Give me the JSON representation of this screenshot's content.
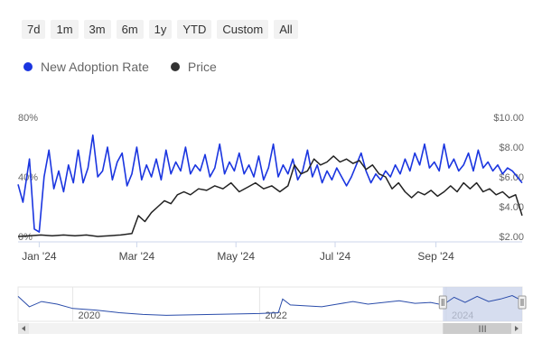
{
  "range_buttons": [
    "7d",
    "1m",
    "3m",
    "6m",
    "1y",
    "YTD",
    "Custom",
    "All"
  ],
  "legend": [
    {
      "label": "New Adoption Rate",
      "color": "#1a35e0"
    },
    {
      "label": "Price",
      "color": "#333333"
    }
  ],
  "colors": {
    "adoption": "#1a35e0",
    "price": "#222222",
    "navigator_line": "#2a4caa",
    "navigator_mask": "#c8d2ea"
  },
  "chart_data": {
    "type": "line",
    "x_type": "date",
    "x_range": [
      "2023-12-19",
      "2024-10-24"
    ],
    "x_tick_labels": [
      "Jan '24",
      "Mar '24",
      "May '24",
      "Jul '24",
      "Sep '24"
    ],
    "x_ticks": [
      "2024-01-01",
      "2024-03-01",
      "2024-05-01",
      "2024-07-01",
      "2024-09-01"
    ],
    "y_left": {
      "range": [
        0,
        80
      ],
      "tick_labels": [
        "0%",
        "40%",
        "80%"
      ],
      "tick_values": [
        0,
        40,
        80
      ]
    },
    "y_right": {
      "range": [
        2,
        10
      ],
      "tick_labels": [
        "$2.00",
        "$4.00",
        "$6.00",
        "$8.00",
        "$10.00"
      ],
      "tick_values": [
        2,
        4,
        6,
        8,
        10
      ]
    },
    "grid": false,
    "legend_position": "top-left",
    "series": [
      {
        "name": "New Adoption Rate",
        "axis": "left",
        "values": [
          {
            "x": "2023-12-19",
            "y": 35
          },
          {
            "x": "2023-12-22",
            "y": 23
          },
          {
            "x": "2023-12-26",
            "y": 52
          },
          {
            "x": "2023-12-29",
            "y": 5
          },
          {
            "x": "2024-01-01",
            "y": 3
          },
          {
            "x": "2024-01-04",
            "y": 40
          },
          {
            "x": "2024-01-07",
            "y": 58
          },
          {
            "x": "2024-01-10",
            "y": 32
          },
          {
            "x": "2024-01-13",
            "y": 44
          },
          {
            "x": "2024-01-16",
            "y": 30
          },
          {
            "x": "2024-01-19",
            "y": 48
          },
          {
            "x": "2024-01-22",
            "y": 36
          },
          {
            "x": "2024-01-25",
            "y": 58
          },
          {
            "x": "2024-01-28",
            "y": 36
          },
          {
            "x": "2024-01-31",
            "y": 46
          },
          {
            "x": "2024-02-03",
            "y": 68
          },
          {
            "x": "2024-02-06",
            "y": 40
          },
          {
            "x": "2024-02-09",
            "y": 44
          },
          {
            "x": "2024-02-12",
            "y": 60
          },
          {
            "x": "2024-02-15",
            "y": 38
          },
          {
            "x": "2024-02-18",
            "y": 50
          },
          {
            "x": "2024-02-21",
            "y": 56
          },
          {
            "x": "2024-02-24",
            "y": 34
          },
          {
            "x": "2024-02-27",
            "y": 42
          },
          {
            "x": "2024-03-01",
            "y": 60
          },
          {
            "x": "2024-03-04",
            "y": 38
          },
          {
            "x": "2024-03-07",
            "y": 48
          },
          {
            "x": "2024-03-10",
            "y": 40
          },
          {
            "x": "2024-03-13",
            "y": 52
          },
          {
            "x": "2024-03-16",
            "y": 38
          },
          {
            "x": "2024-03-19",
            "y": 58
          },
          {
            "x": "2024-03-22",
            "y": 42
          },
          {
            "x": "2024-03-25",
            "y": 50
          },
          {
            "x": "2024-03-28",
            "y": 44
          },
          {
            "x": "2024-03-31",
            "y": 60
          },
          {
            "x": "2024-04-03",
            "y": 42
          },
          {
            "x": "2024-04-06",
            "y": 48
          },
          {
            "x": "2024-04-09",
            "y": 44
          },
          {
            "x": "2024-04-12",
            "y": 55
          },
          {
            "x": "2024-04-15",
            "y": 40
          },
          {
            "x": "2024-04-18",
            "y": 46
          },
          {
            "x": "2024-04-21",
            "y": 62
          },
          {
            "x": "2024-04-24",
            "y": 42
          },
          {
            "x": "2024-04-27",
            "y": 50
          },
          {
            "x": "2024-04-30",
            "y": 44
          },
          {
            "x": "2024-05-03",
            "y": 56
          },
          {
            "x": "2024-05-06",
            "y": 42
          },
          {
            "x": "2024-05-09",
            "y": 48
          },
          {
            "x": "2024-05-12",
            "y": 40
          },
          {
            "x": "2024-05-15",
            "y": 54
          },
          {
            "x": "2024-05-18",
            "y": 38
          },
          {
            "x": "2024-05-21",
            "y": 46
          },
          {
            "x": "2024-05-24",
            "y": 62
          },
          {
            "x": "2024-05-27",
            "y": 40
          },
          {
            "x": "2024-05-30",
            "y": 48
          },
          {
            "x": "2024-06-02",
            "y": 42
          },
          {
            "x": "2024-06-05",
            "y": 52
          },
          {
            "x": "2024-06-08",
            "y": 38
          },
          {
            "x": "2024-06-11",
            "y": 44
          },
          {
            "x": "2024-06-14",
            "y": 58
          },
          {
            "x": "2024-06-17",
            "y": 40
          },
          {
            "x": "2024-06-20",
            "y": 48
          },
          {
            "x": "2024-06-23",
            "y": 36
          },
          {
            "x": "2024-06-26",
            "y": 44
          },
          {
            "x": "2024-06-29",
            "y": 38
          },
          {
            "x": "2024-07-02",
            "y": 46
          },
          {
            "x": "2024-07-05",
            "y": 40
          },
          {
            "x": "2024-07-08",
            "y": 34
          },
          {
            "x": "2024-07-11",
            "y": 40
          },
          {
            "x": "2024-07-14",
            "y": 48
          },
          {
            "x": "2024-07-17",
            "y": 56
          },
          {
            "x": "2024-07-20",
            "y": 44
          },
          {
            "x": "2024-07-23",
            "y": 36
          },
          {
            "x": "2024-07-26",
            "y": 42
          },
          {
            "x": "2024-07-29",
            "y": 38
          },
          {
            "x": "2024-08-01",
            "y": 44
          },
          {
            "x": "2024-08-04",
            "y": 40
          },
          {
            "x": "2024-08-07",
            "y": 48
          },
          {
            "x": "2024-08-10",
            "y": 42
          },
          {
            "x": "2024-08-13",
            "y": 52
          },
          {
            "x": "2024-08-16",
            "y": 44
          },
          {
            "x": "2024-08-19",
            "y": 56
          },
          {
            "x": "2024-08-22",
            "y": 48
          },
          {
            "x": "2024-08-25",
            "y": 62
          },
          {
            "x": "2024-08-28",
            "y": 46
          },
          {
            "x": "2024-08-31",
            "y": 50
          },
          {
            "x": "2024-09-03",
            "y": 44
          },
          {
            "x": "2024-09-06",
            "y": 62
          },
          {
            "x": "2024-09-09",
            "y": 46
          },
          {
            "x": "2024-09-12",
            "y": 52
          },
          {
            "x": "2024-09-15",
            "y": 44
          },
          {
            "x": "2024-09-18",
            "y": 48
          },
          {
            "x": "2024-09-21",
            "y": 56
          },
          {
            "x": "2024-09-24",
            "y": 44
          },
          {
            "x": "2024-09-27",
            "y": 58
          },
          {
            "x": "2024-09-30",
            "y": 46
          },
          {
            "x": "2024-10-03",
            "y": 50
          },
          {
            "x": "2024-10-06",
            "y": 44
          },
          {
            "x": "2024-10-09",
            "y": 48
          },
          {
            "x": "2024-10-12",
            "y": 42
          },
          {
            "x": "2024-10-15",
            "y": 46
          },
          {
            "x": "2024-10-18",
            "y": 44
          },
          {
            "x": "2024-10-21",
            "y": 40
          },
          {
            "x": "2024-10-24",
            "y": 36
          }
        ]
      },
      {
        "name": "Price",
        "axis": "right",
        "values": [
          {
            "x": "2023-12-19",
            "y": 2.0
          },
          {
            "x": "2023-12-26",
            "y": 2.05
          },
          {
            "x": "2024-01-02",
            "y": 2.1
          },
          {
            "x": "2024-01-09",
            "y": 2.05
          },
          {
            "x": "2024-01-16",
            "y": 2.1
          },
          {
            "x": "2024-01-23",
            "y": 2.05
          },
          {
            "x": "2024-01-30",
            "y": 2.1
          },
          {
            "x": "2024-02-06",
            "y": 2.0
          },
          {
            "x": "2024-02-13",
            "y": 2.05
          },
          {
            "x": "2024-02-20",
            "y": 2.1
          },
          {
            "x": "2024-02-27",
            "y": 2.2
          },
          {
            "x": "2024-03-02",
            "y": 3.4
          },
          {
            "x": "2024-03-06",
            "y": 3.0
          },
          {
            "x": "2024-03-10",
            "y": 3.6
          },
          {
            "x": "2024-03-14",
            "y": 4.0
          },
          {
            "x": "2024-03-18",
            "y": 4.4
          },
          {
            "x": "2024-03-22",
            "y": 4.2
          },
          {
            "x": "2024-03-26",
            "y": 4.8
          },
          {
            "x": "2024-03-30",
            "y": 5.0
          },
          {
            "x": "2024-04-03",
            "y": 4.8
          },
          {
            "x": "2024-04-08",
            "y": 5.2
          },
          {
            "x": "2024-04-13",
            "y": 5.1
          },
          {
            "x": "2024-04-18",
            "y": 5.4
          },
          {
            "x": "2024-04-23",
            "y": 5.2
          },
          {
            "x": "2024-04-28",
            "y": 5.6
          },
          {
            "x": "2024-05-03",
            "y": 5.0
          },
          {
            "x": "2024-05-08",
            "y": 5.3
          },
          {
            "x": "2024-05-13",
            "y": 5.6
          },
          {
            "x": "2024-05-18",
            "y": 5.2
          },
          {
            "x": "2024-05-23",
            "y": 5.4
          },
          {
            "x": "2024-05-28",
            "y": 5.0
          },
          {
            "x": "2024-06-02",
            "y": 5.4
          },
          {
            "x": "2024-06-06",
            "y": 6.8
          },
          {
            "x": "2024-06-10",
            "y": 6.2
          },
          {
            "x": "2024-06-14",
            "y": 6.4
          },
          {
            "x": "2024-06-18",
            "y": 7.2
          },
          {
            "x": "2024-06-22",
            "y": 6.8
          },
          {
            "x": "2024-06-26",
            "y": 7.0
          },
          {
            "x": "2024-06-30",
            "y": 7.4
          },
          {
            "x": "2024-07-04",
            "y": 7.0
          },
          {
            "x": "2024-07-08",
            "y": 7.2
          },
          {
            "x": "2024-07-12",
            "y": 6.9
          },
          {
            "x": "2024-07-16",
            "y": 7.1
          },
          {
            "x": "2024-07-20",
            "y": 6.5
          },
          {
            "x": "2024-07-24",
            "y": 6.8
          },
          {
            "x": "2024-07-28",
            "y": 6.2
          },
          {
            "x": "2024-08-01",
            "y": 6.0
          },
          {
            "x": "2024-08-05",
            "y": 5.2
          },
          {
            "x": "2024-08-09",
            "y": 5.6
          },
          {
            "x": "2024-08-13",
            "y": 5.0
          },
          {
            "x": "2024-08-17",
            "y": 4.6
          },
          {
            "x": "2024-08-21",
            "y": 5.0
          },
          {
            "x": "2024-08-25",
            "y": 4.8
          },
          {
            "x": "2024-08-29",
            "y": 5.1
          },
          {
            "x": "2024-09-02",
            "y": 4.7
          },
          {
            "x": "2024-09-06",
            "y": 5.0
          },
          {
            "x": "2024-09-10",
            "y": 5.4
          },
          {
            "x": "2024-09-14",
            "y": 5.0
          },
          {
            "x": "2024-09-18",
            "y": 5.6
          },
          {
            "x": "2024-09-22",
            "y": 5.2
          },
          {
            "x": "2024-09-26",
            "y": 5.6
          },
          {
            "x": "2024-09-30",
            "y": 5.0
          },
          {
            "x": "2024-10-04",
            "y": 5.2
          },
          {
            "x": "2024-10-08",
            "y": 4.8
          },
          {
            "x": "2024-10-12",
            "y": 5.0
          },
          {
            "x": "2024-10-16",
            "y": 4.6
          },
          {
            "x": "2024-10-20",
            "y": 4.8
          },
          {
            "x": "2024-10-24",
            "y": 3.4
          }
        ]
      }
    ]
  },
  "navigator": {
    "x_range": [
      "2019-06-01",
      "2024-10-24"
    ],
    "tick_labels": [
      "2020",
      "2022",
      "2024"
    ],
    "tick_values": [
      "2020-01-01",
      "2022-01-01",
      "2024-01-01"
    ],
    "selected_range": [
      "2023-12-19",
      "2024-10-24"
    ],
    "values": [
      {
        "x": "2019-06-01",
        "y": 58
      },
      {
        "x": "2019-07-15",
        "y": 34
      },
      {
        "x": "2019-09-01",
        "y": 46
      },
      {
        "x": "2019-11-01",
        "y": 40
      },
      {
        "x": "2020-01-01",
        "y": 30
      },
      {
        "x": "2020-04-01",
        "y": 26
      },
      {
        "x": "2020-07-01",
        "y": 20
      },
      {
        "x": "2020-10-01",
        "y": 16
      },
      {
        "x": "2021-01-01",
        "y": 14
      },
      {
        "x": "2021-04-01",
        "y": 15
      },
      {
        "x": "2021-07-01",
        "y": 16
      },
      {
        "x": "2021-10-01",
        "y": 17
      },
      {
        "x": "2022-01-01",
        "y": 18
      },
      {
        "x": "2022-03-15",
        "y": 20
      },
      {
        "x": "2022-04-01",
        "y": 52
      },
      {
        "x": "2022-05-01",
        "y": 38
      },
      {
        "x": "2022-07-01",
        "y": 36
      },
      {
        "x": "2022-09-01",
        "y": 34
      },
      {
        "x": "2022-11-01",
        "y": 40
      },
      {
        "x": "2023-01-01",
        "y": 46
      },
      {
        "x": "2023-03-01",
        "y": 40
      },
      {
        "x": "2023-05-01",
        "y": 44
      },
      {
        "x": "2023-07-01",
        "y": 48
      },
      {
        "x": "2023-09-01",
        "y": 42
      },
      {
        "x": "2023-11-01",
        "y": 44
      },
      {
        "x": "2023-12-19",
        "y": 38
      },
      {
        "x": "2024-02-01",
        "y": 56
      },
      {
        "x": "2024-03-15",
        "y": 44
      },
      {
        "x": "2024-05-01",
        "y": 58
      },
      {
        "x": "2024-06-15",
        "y": 46
      },
      {
        "x": "2024-08-01",
        "y": 52
      },
      {
        "x": "2024-09-15",
        "y": 60
      },
      {
        "x": "2024-10-24",
        "y": 48
      }
    ],
    "y_range": [
      0,
      80
    ],
    "scroll_grip": "III"
  }
}
